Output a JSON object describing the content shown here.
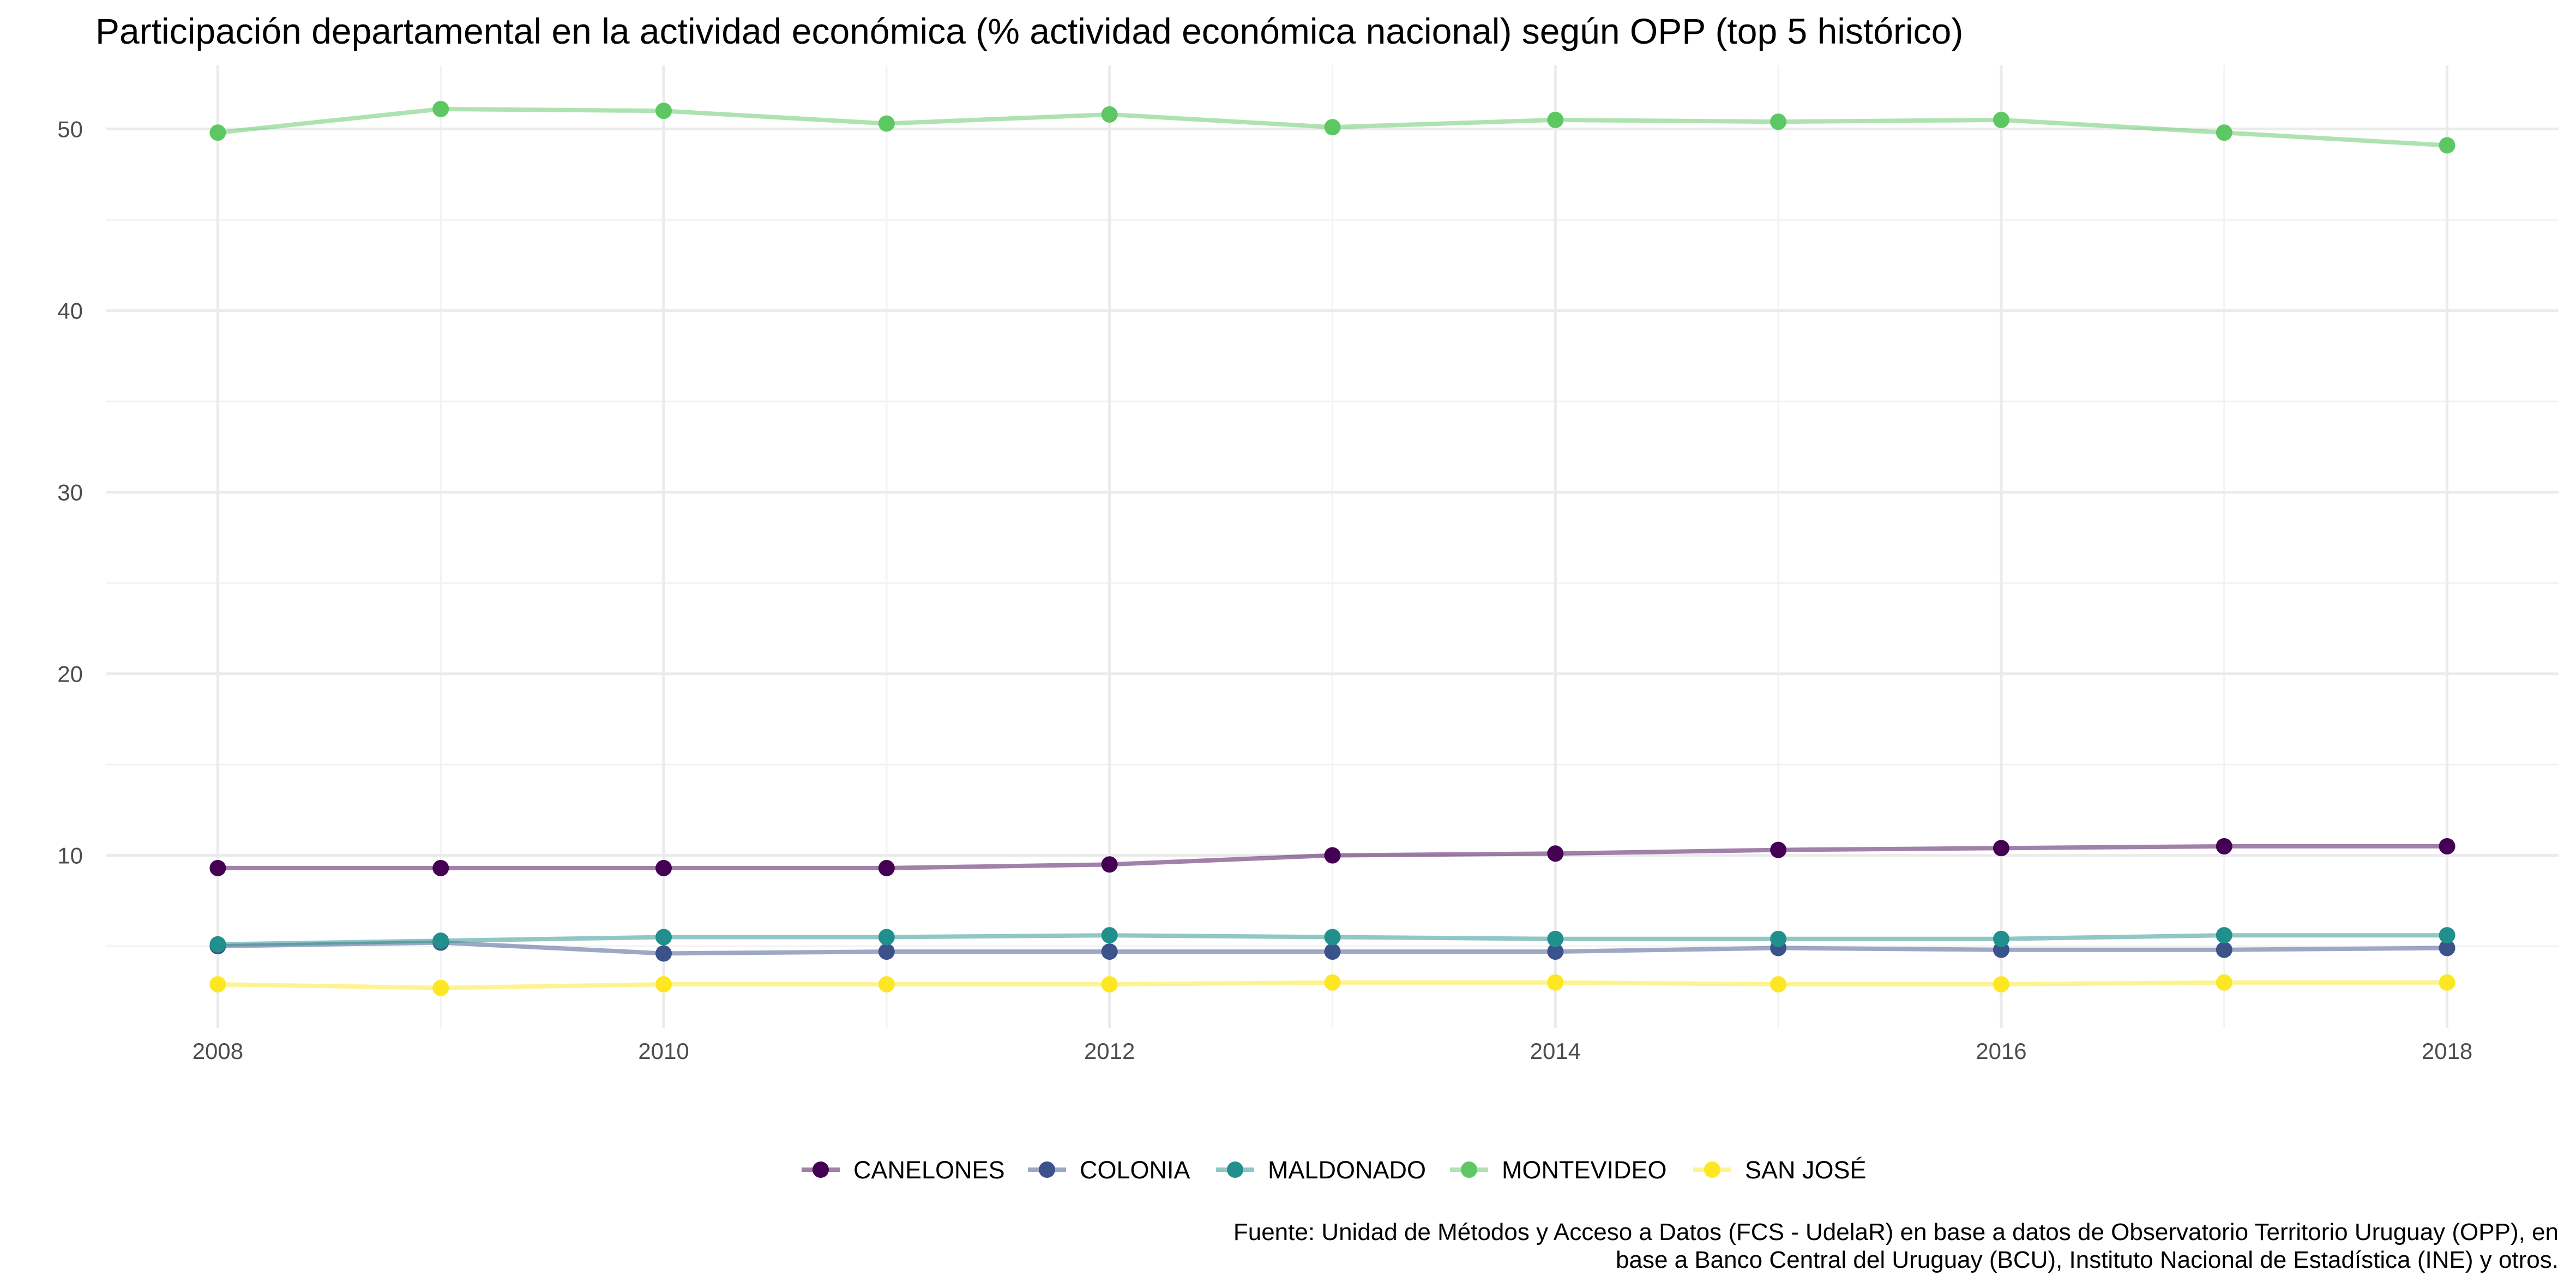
{
  "chart_data": {
    "type": "line",
    "title": "Participación departamental en la actividad económica (% actividad económica nacional) según OPP (top 5 histórico)",
    "xlabel": "",
    "ylabel": "",
    "x": [
      2008,
      2009,
      2010,
      2011,
      2012,
      2013,
      2014,
      2015,
      2016,
      2017,
      2018
    ],
    "x_ticks": [
      2008,
      2010,
      2012,
      2014,
      2016,
      2018
    ],
    "x_tick_labels": [
      "2008",
      "2010",
      "2012",
      "2014",
      "2016",
      "2018"
    ],
    "xlim": [
      2007.5,
      2018.5
    ],
    "y_ticks": [
      10,
      20,
      30,
      40,
      50
    ],
    "y_tick_labels": [
      "10",
      "20",
      "30",
      "40",
      "50"
    ],
    "ylim": [
      0.5,
      53.5
    ],
    "grid": true,
    "legend_position": "bottom",
    "series": [
      {
        "name": "CANELONES",
        "color": "#440154",
        "values": [
          9.3,
          9.3,
          9.3,
          9.3,
          9.5,
          10.0,
          10.1,
          10.3,
          10.4,
          10.5,
          10.5
        ]
      },
      {
        "name": "COLONIA",
        "color": "#3B528B",
        "values": [
          5.0,
          5.2,
          4.6,
          4.7,
          4.7,
          4.7,
          4.7,
          4.9,
          4.8,
          4.8,
          4.9
        ]
      },
      {
        "name": "MALDONADO",
        "color": "#21908C",
        "values": [
          5.1,
          5.3,
          5.5,
          5.5,
          5.6,
          5.5,
          5.4,
          5.4,
          5.4,
          5.6,
          5.6
        ]
      },
      {
        "name": "MONTEVIDEO",
        "color": "#5DC863",
        "values": [
          49.8,
          51.1,
          51.0,
          50.3,
          50.8,
          50.1,
          50.5,
          50.4,
          50.5,
          49.8,
          49.1
        ]
      },
      {
        "name": "SAN JOSÉ",
        "color": "#FDE725",
        "values": [
          2.9,
          2.7,
          2.9,
          2.9,
          2.9,
          3.0,
          3.0,
          2.9,
          2.9,
          3.0,
          3.0
        ]
      }
    ],
    "caption": [
      "Fuente: Unidad de Métodos y Acceso a Datos (FCS - UdelaR) en base a datos de Observatorio Territorio Uruguay (OPP), en",
      "base a Banco Central del Uruguay (BCU), Instituto Nacional de Estadística (INE) y otros."
    ]
  }
}
